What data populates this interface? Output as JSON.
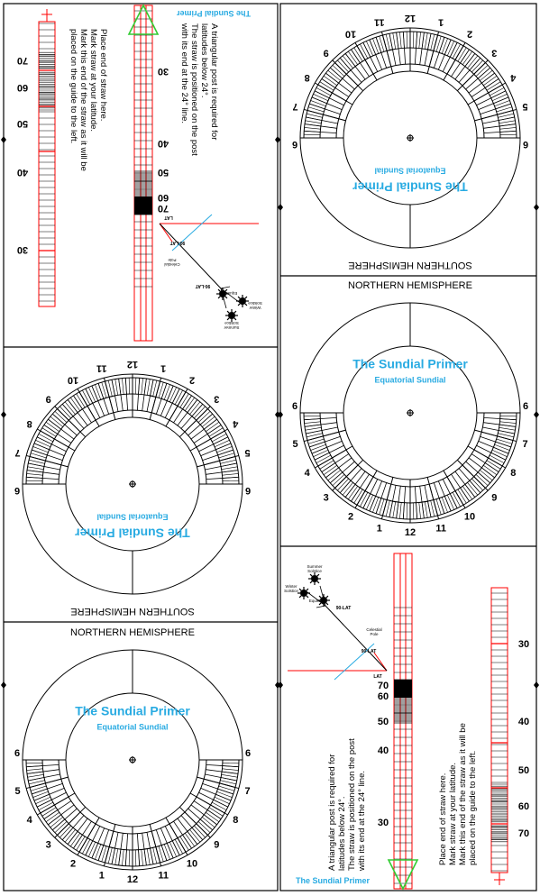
{
  "brand": "The Sundial Primer",
  "dial_label": "Equatorial Sundial",
  "hemisphere": {
    "north": "NORTHERN HEMISPHERE",
    "south": "SOUTHERN HEMISPHERE"
  },
  "hour_labels": [
    "1",
    "2",
    "3",
    "4",
    "5",
    "6",
    "7",
    "8",
    "9",
    "10",
    "11",
    "12"
  ],
  "guide_text": {
    "post_lines": [
      "A triangular post is required for",
      "latitudes below 24°.",
      "The straw is positioned on the post",
      "with its end at the 24° line."
    ],
    "straw_lines": [
      "Place end of straw here.",
      "Mark straw at your latitude.",
      "Mark this end of the straw as it will be",
      "placed on the guide to the left."
    ]
  },
  "latitude_labels": [
    "30",
    "40",
    "50",
    "60",
    "70"
  ],
  "diagram_labels": {
    "summer_solstice": [
      "Summer",
      "Solstice"
    ],
    "equinox": "Equinox",
    "winter_solstice": [
      "Winter",
      "Solstice"
    ],
    "celestial_pole": [
      "Celestial",
      "Pole"
    ],
    "angle_a": "90-LAT",
    "angle_b": "90-LAT",
    "lat": "LAT"
  },
  "colors": {
    "accent": "#29abe2",
    "line": "#ff0000",
    "triangle": "#33cc33",
    "ink": "#000000"
  }
}
